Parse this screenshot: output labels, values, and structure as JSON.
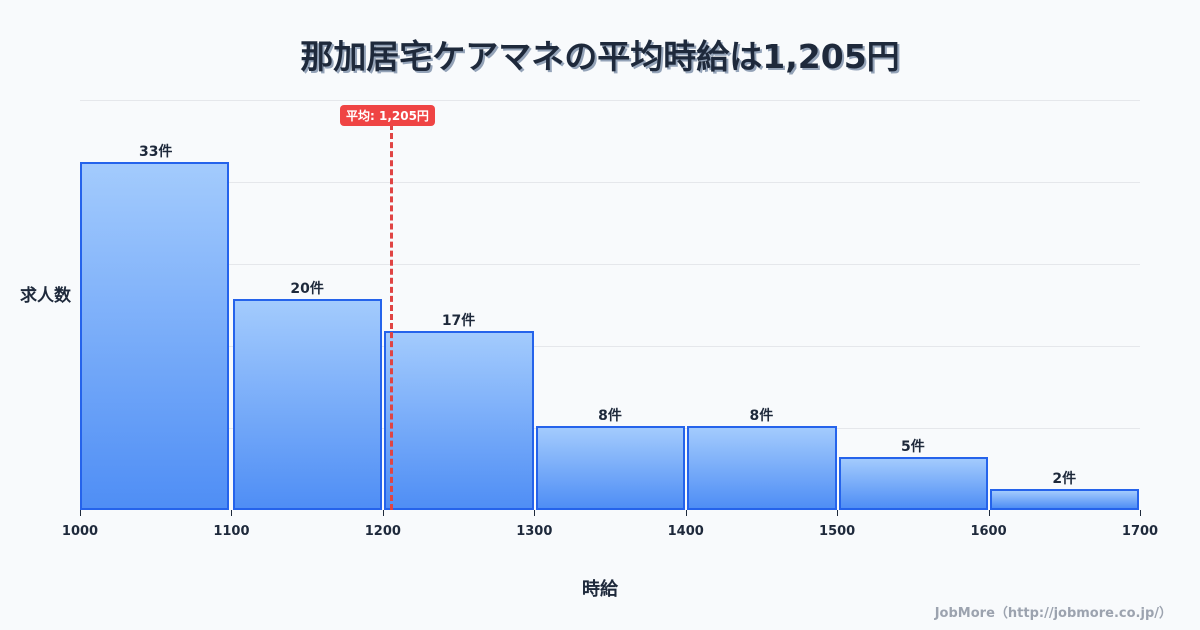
{
  "header": {
    "title": "那加居宅ケアマネの平均時給は1,205円"
  },
  "axes": {
    "ylabel": "求人数",
    "xlabel": "時給"
  },
  "credit": "JobMore（http://jobmore.co.jp/）",
  "mean": {
    "label": "平均: 1,205円",
    "value": 1205,
    "color": "#ef4444"
  },
  "colors": {
    "bar_border": "#2563eb",
    "bar_top": "#a3cbfd",
    "bar_bottom": "#4f8ef5",
    "background": "#f8fafc"
  },
  "chart_data": {
    "type": "bar",
    "title": "那加居宅ケアマネの平均時給は1,205円",
    "xlabel": "時給",
    "ylabel": "求人数",
    "categories": [
      "1000-1100",
      "1100-1200",
      "1200-1300",
      "1300-1400",
      "1400-1500",
      "1500-1600",
      "1600-1700"
    ],
    "bins": [
      1000,
      1100,
      1200,
      1300,
      1400,
      1500,
      1600,
      1700
    ],
    "values": [
      33,
      20,
      17,
      8,
      8,
      5,
      2
    ],
    "value_labels": [
      "33件",
      "20件",
      "17件",
      "8件",
      "8件",
      "5件",
      "2件"
    ],
    "x_tick_labels": [
      "1000",
      "1100",
      "1200",
      "1300",
      "1400",
      "1500",
      "1600",
      "1700"
    ],
    "xlim": [
      1000,
      1700
    ],
    "ylim": [
      0,
      39
    ],
    "grid": true,
    "annotations": [
      {
        "type": "vline",
        "x": 1205,
        "label": "平均: 1,205円",
        "style": "dashed",
        "color": "#ef4444"
      }
    ]
  }
}
